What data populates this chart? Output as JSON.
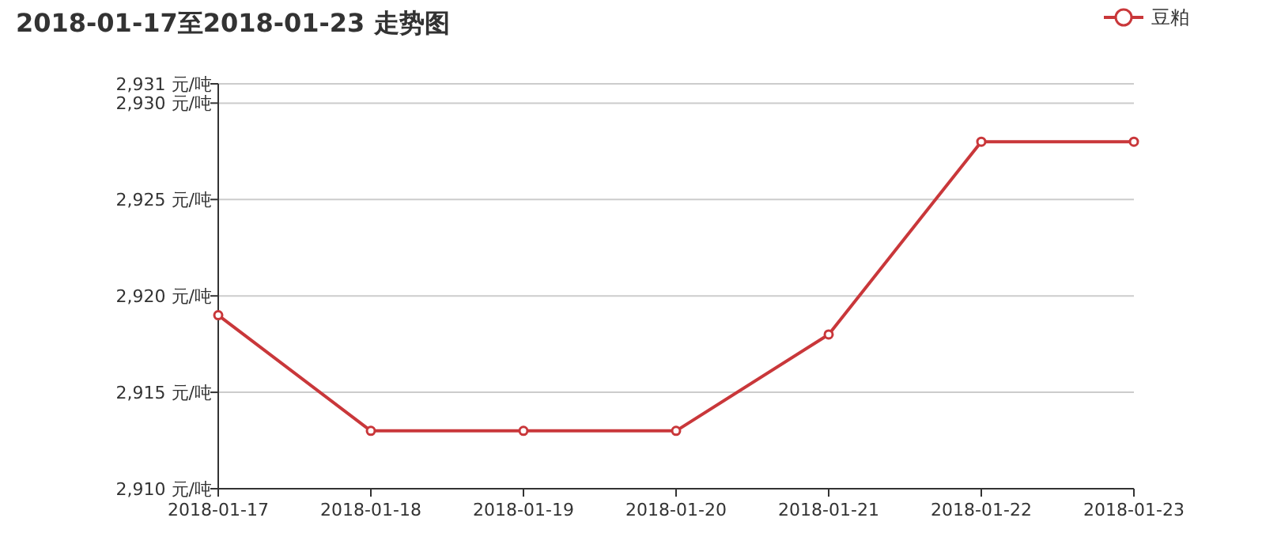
{
  "chart_data": {
    "type": "line",
    "title": "2018-01-17至2018-01-23 走势图",
    "categories": [
      "2018-01-17",
      "2018-01-18",
      "2018-01-19",
      "2018-01-20",
      "2018-01-21",
      "2018-01-22",
      "2018-01-23"
    ],
    "series": [
      {
        "name": "豆粕",
        "color": "#c9373a",
        "values": [
          2919,
          2913,
          2913,
          2913,
          2918,
          2928,
          2928
        ]
      }
    ],
    "ylim": [
      2910,
      2931
    ],
    "yticks": [
      {
        "value": 2910,
        "label": "2,910 元/吨"
      },
      {
        "value": 2915,
        "label": "2,915 元/吨"
      },
      {
        "value": 2920,
        "label": "2,920 元/吨"
      },
      {
        "value": 2925,
        "label": "2,925 元/吨"
      },
      {
        "value": 2930,
        "label": "2,930 元/吨"
      },
      {
        "value": 2931,
        "label": "2,931 元/吨"
      }
    ],
    "grid": "y",
    "legend": "top right",
    "marker": "circle",
    "line_style": "solid"
  }
}
